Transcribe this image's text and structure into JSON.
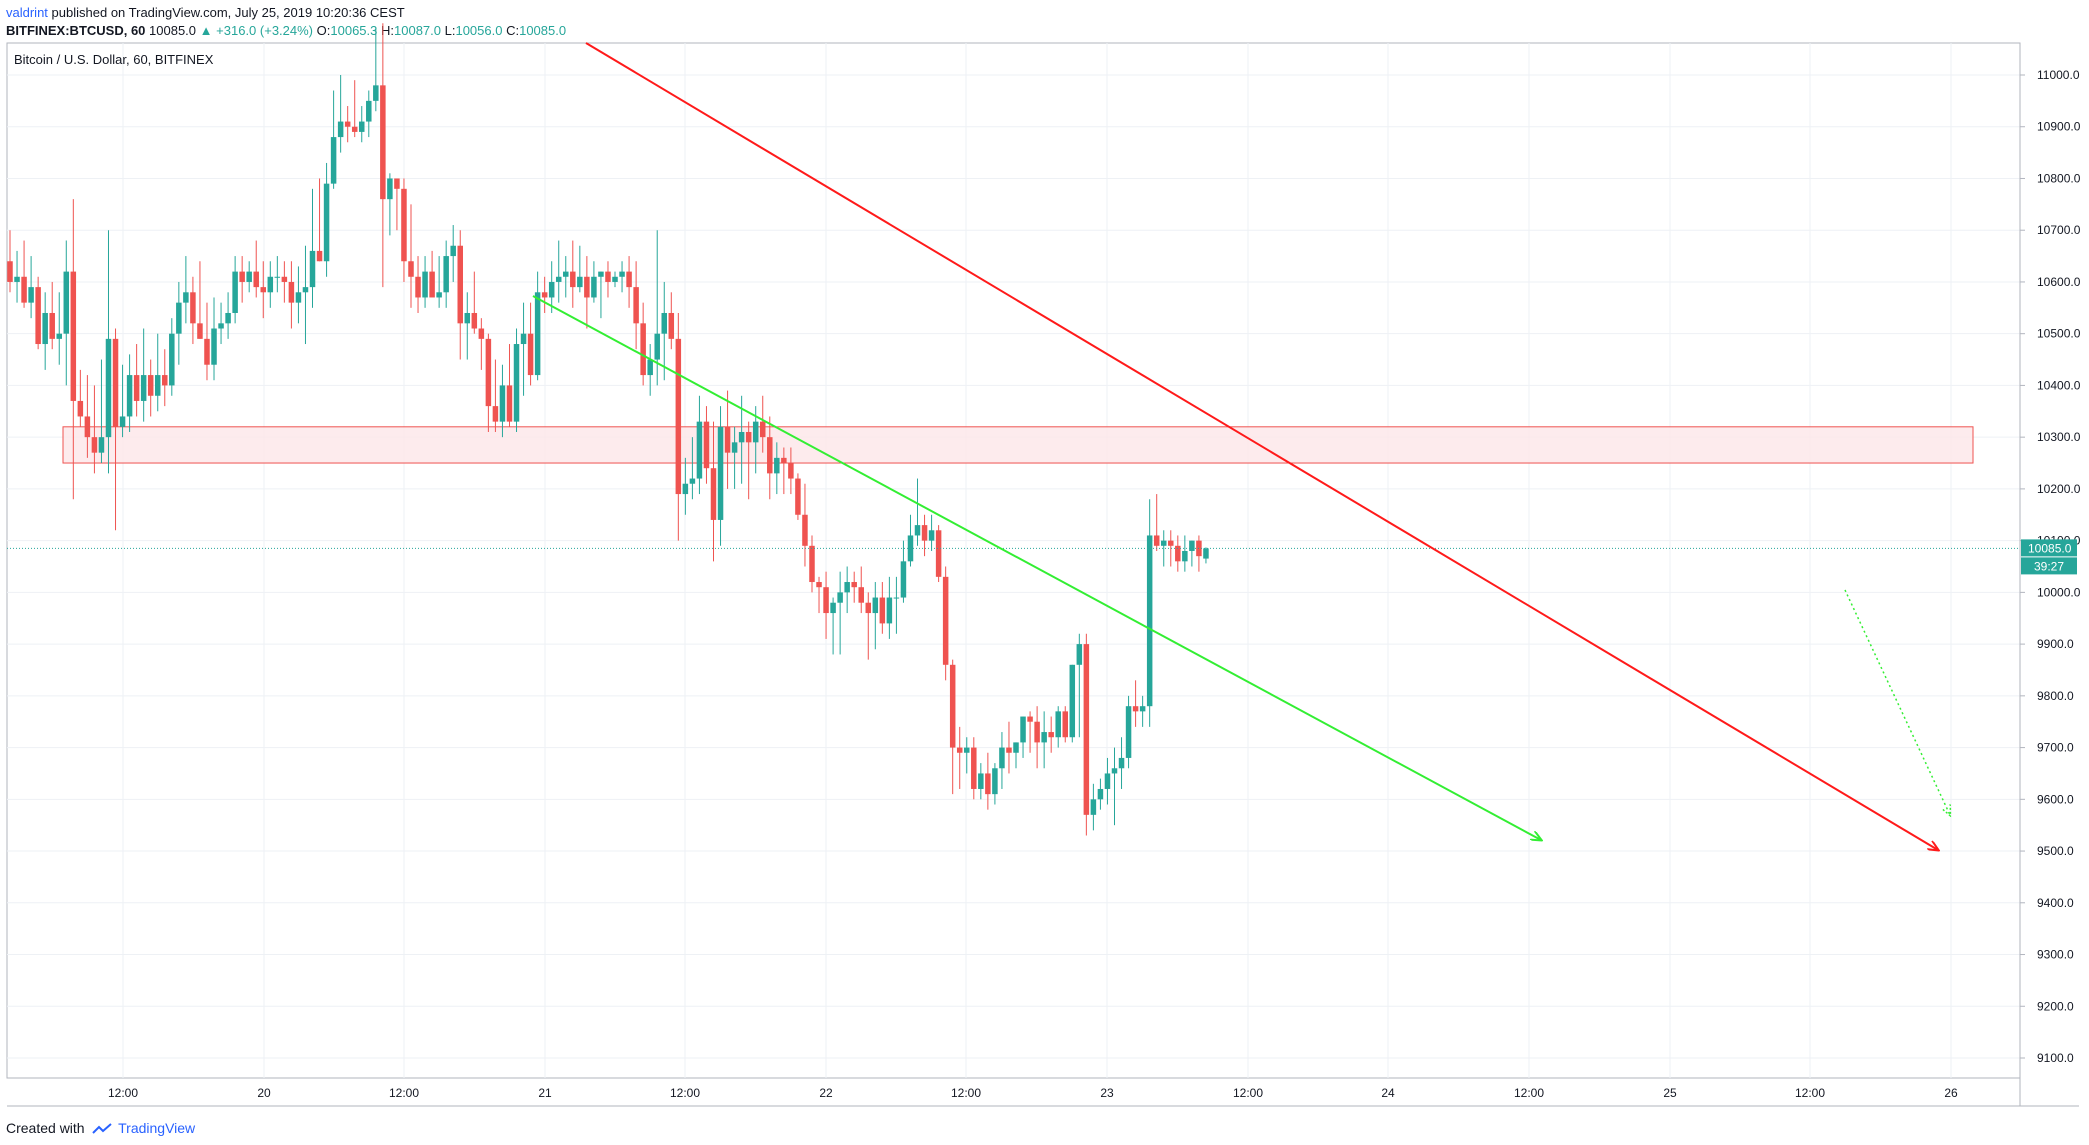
{
  "header": {
    "user": "valdrint",
    "published": "published on TradingView.com, July 25, 2019 10:20:36 CEST",
    "symbol": "BITFINEX:BTCUSD, 60",
    "last": "10085.0",
    "change": "+316.0 (+3.24%)",
    "open_label": "O:",
    "open": "10065.3",
    "high_label": "H:",
    "high": "10087.0",
    "low_label": "L:",
    "low": "10056.0",
    "close_label": "C:",
    "close": "10085.0"
  },
  "footer": {
    "created": "Created with",
    "brand": "TradingView"
  },
  "colors": {
    "up": "#26a69a",
    "down": "#ef5350",
    "grid": "#eef1f5",
    "resistance_fill": "#fde6e8",
    "resistance_stroke": "#ef5350",
    "green_line": "#33ee33",
    "red_line": "#ff1a1a",
    "price_line": "#26a69a"
  },
  "chart_data": {
    "type": "candlestick",
    "title": "Bitcoin / U.S. Dollar, 60, BITFINEX",
    "x_ticks": [
      "12:00",
      "20",
      "12:00",
      "21",
      "12:00",
      "22",
      "12:00",
      "23",
      "12:00",
      "24",
      "12:00",
      "25",
      "12:00",
      "26"
    ],
    "y_ticks": [
      "11000.0",
      "10900.0",
      "10800.0",
      "10700.0",
      "10600.0",
      "10500.0",
      "10400.0",
      "10300.0",
      "10200.0",
      "10100.0",
      "10000.0",
      "9900.0",
      "9800.0",
      "9700.0",
      "9600.0",
      "9500.0",
      "9400.0",
      "9300.0",
      "9200.0",
      "9100.0"
    ],
    "ylim": [
      9070,
      11110
    ],
    "last_price": "10085.0",
    "countdown": "39:27",
    "resistance_zone": [
      10250,
      10320
    ],
    "candles": [
      [
        10640,
        10700,
        10580,
        10600
      ],
      [
        10600,
        10660,
        10560,
        10610
      ],
      [
        10610,
        10680,
        10550,
        10560
      ],
      [
        10560,
        10650,
        10530,
        10590
      ],
      [
        10590,
        10610,
        10470,
        10480
      ],
      [
        10480,
        10580,
        10430,
        10540
      ],
      [
        10540,
        10600,
        10470,
        10490
      ],
      [
        10490,
        10580,
        10440,
        10500
      ],
      [
        10500,
        10680,
        10400,
        10620
      ],
      [
        10620,
        10760,
        10180,
        10370
      ],
      [
        10370,
        10430,
        10320,
        10340
      ],
      [
        10340,
        10420,
        10260,
        10300
      ],
      [
        10300,
        10400,
        10230,
        10270
      ],
      [
        10270,
        10450,
        10250,
        10300
      ],
      [
        10300,
        10700,
        10230,
        10490
      ],
      [
        10490,
        10510,
        10120,
        10320
      ],
      [
        10320,
        10440,
        10300,
        10340
      ],
      [
        10340,
        10460,
        10310,
        10420
      ],
      [
        10420,
        10480,
        10340,
        10370
      ],
      [
        10370,
        10510,
        10330,
        10420
      ],
      [
        10420,
        10450,
        10340,
        10380
      ],
      [
        10380,
        10500,
        10350,
        10420
      ],
      [
        10420,
        10470,
        10360,
        10400
      ],
      [
        10400,
        10530,
        10380,
        10500
      ],
      [
        10500,
        10600,
        10440,
        10560
      ],
      [
        10560,
        10650,
        10520,
        10580
      ],
      [
        10580,
        10610,
        10480,
        10520
      ],
      [
        10520,
        10640,
        10490,
        10490
      ],
      [
        10490,
        10560,
        10410,
        10440
      ],
      [
        10440,
        10570,
        10410,
        10510
      ],
      [
        10510,
        10560,
        10480,
        10520
      ],
      [
        10520,
        10580,
        10490,
        10540
      ],
      [
        10540,
        10650,
        10520,
        10620
      ],
      [
        10620,
        10650,
        10560,
        10600
      ],
      [
        10600,
        10640,
        10580,
        10620
      ],
      [
        10620,
        10680,
        10570,
        10590
      ],
      [
        10590,
        10640,
        10530,
        10580
      ],
      [
        10580,
        10640,
        10550,
        10610
      ],
      [
        10610,
        10650,
        10580,
        10610
      ],
      [
        10610,
        10640,
        10560,
        10600
      ],
      [
        10600,
        10640,
        10510,
        10560
      ],
      [
        10560,
        10630,
        10520,
        10580
      ],
      [
        10580,
        10670,
        10480,
        10590
      ],
      [
        10590,
        10780,
        10550,
        10660
      ],
      [
        10660,
        10800,
        10640,
        10640
      ],
      [
        10640,
        10830,
        10610,
        10790
      ],
      [
        10790,
        10970,
        10780,
        10880
      ],
      [
        10880,
        11000,
        10850,
        10910
      ],
      [
        10910,
        10940,
        10870,
        10900
      ],
      [
        10900,
        10990,
        10880,
        10890
      ],
      [
        10890,
        10940,
        10870,
        10910
      ],
      [
        10910,
        10970,
        10880,
        10950
      ],
      [
        10950,
        11090,
        10930,
        10980
      ],
      [
        10980,
        11100,
        10590,
        10760
      ],
      [
        10760,
        10810,
        10690,
        10800
      ],
      [
        10800,
        10790,
        10700,
        10780
      ],
      [
        10780,
        10800,
        10600,
        10640
      ],
      [
        10640,
        10750,
        10550,
        10610
      ],
      [
        10610,
        10650,
        10540,
        10570
      ],
      [
        10570,
        10650,
        10550,
        10620
      ],
      [
        10620,
        10660,
        10580,
        10570
      ],
      [
        10570,
        10650,
        10550,
        10580
      ],
      [
        10580,
        10680,
        10550,
        10650
      ],
      [
        10650,
        10710,
        10600,
        10670
      ],
      [
        10670,
        10700,
        10450,
        10520
      ],
      [
        10520,
        10580,
        10450,
        10540
      ],
      [
        10540,
        10620,
        10500,
        10510
      ],
      [
        10510,
        10530,
        10430,
        10490
      ],
      [
        10490,
        10500,
        10310,
        10360
      ],
      [
        10360,
        10450,
        10310,
        10330
      ],
      [
        10330,
        10440,
        10300,
        10400
      ],
      [
        10400,
        10480,
        10320,
        10330
      ],
      [
        10330,
        10510,
        10310,
        10480
      ],
      [
        10480,
        10560,
        10380,
        10500
      ],
      [
        10500,
        10560,
        10400,
        10420
      ],
      [
        10420,
        10620,
        10410,
        10580
      ],
      [
        10580,
        10610,
        10540,
        10570
      ],
      [
        10570,
        10640,
        10540,
        10600
      ],
      [
        10600,
        10680,
        10560,
        10610
      ],
      [
        10610,
        10650,
        10570,
        10620
      ],
      [
        10620,
        10680,
        10550,
        10590
      ],
      [
        10590,
        10670,
        10580,
        10610
      ],
      [
        10610,
        10650,
        10510,
        10570
      ],
      [
        10570,
        10640,
        10560,
        10610
      ],
      [
        10610,
        10620,
        10530,
        10620
      ],
      [
        10620,
        10640,
        10570,
        10600
      ],
      [
        10600,
        10620,
        10590,
        10610
      ],
      [
        10610,
        10640,
        10580,
        10620
      ],
      [
        10620,
        10650,
        10550,
        10590
      ],
      [
        10590,
        10640,
        10470,
        10520
      ],
      [
        10520,
        10560,
        10400,
        10420
      ],
      [
        10420,
        10480,
        10380,
        10450
      ],
      [
        10450,
        10700,
        10400,
        10500
      ],
      [
        10500,
        10600,
        10410,
        10540
      ],
      [
        10540,
        10580,
        10470,
        10490
      ],
      [
        10490,
        10540,
        10100,
        10190
      ],
      [
        10190,
        10260,
        10150,
        10210
      ],
      [
        10210,
        10300,
        10180,
        10220
      ],
      [
        10220,
        10380,
        10190,
        10330
      ],
      [
        10330,
        10360,
        10210,
        10240
      ],
      [
        10240,
        10330,
        10060,
        10140
      ],
      [
        10140,
        10360,
        10090,
        10320
      ],
      [
        10320,
        10390,
        10200,
        10270
      ],
      [
        10270,
        10320,
        10200,
        10290
      ],
      [
        10290,
        10380,
        10210,
        10310
      ],
      [
        10310,
        10330,
        10180,
        10290
      ],
      [
        10290,
        10360,
        10230,
        10330
      ],
      [
        10330,
        10380,
        10270,
        10300
      ],
      [
        10300,
        10340,
        10180,
        10230
      ],
      [
        10230,
        10290,
        10190,
        10260
      ],
      [
        10260,
        10280,
        10190,
        10250
      ],
      [
        10250,
        10280,
        10190,
        10220
      ],
      [
        10220,
        10230,
        10140,
        10150
      ],
      [
        10150,
        10210,
        10050,
        10090
      ],
      [
        10090,
        10110,
        10000,
        10020
      ],
      [
        10020,
        10030,
        9960,
        10010
      ],
      [
        10010,
        10040,
        9910,
        9960
      ],
      [
        9960,
        9990,
        9880,
        9980
      ],
      [
        9980,
        10040,
        9880,
        10000
      ],
      [
        10000,
        10050,
        9960,
        10020
      ],
      [
        10020,
        10040,
        9980,
        10010
      ],
      [
        10010,
        10050,
        9960,
        9980
      ],
      [
        9980,
        10000,
        9870,
        9960
      ],
      [
        9960,
        10020,
        9890,
        9990
      ],
      [
        9990,
        10020,
        9920,
        9940
      ],
      [
        9940,
        10030,
        9910,
        9990
      ],
      [
        9990,
        10030,
        9920,
        9990
      ],
      [
        9990,
        10100,
        9980,
        10060
      ],
      [
        10060,
        10150,
        10050,
        10110
      ],
      [
        10110,
        10220,
        10090,
        10130
      ],
      [
        10130,
        10150,
        10070,
        10100
      ],
      [
        10100,
        10150,
        10080,
        10120
      ],
      [
        10120,
        10130,
        10020,
        10030
      ],
      [
        10030,
        10050,
        9830,
        9860
      ],
      [
        9860,
        9870,
        9610,
        9700
      ],
      [
        9700,
        9740,
        9620,
        9690
      ],
      [
        9690,
        9720,
        9650,
        9700
      ],
      [
        9700,
        9720,
        9600,
        9620
      ],
      [
        9620,
        9670,
        9600,
        9650
      ],
      [
        9650,
        9690,
        9580,
        9610
      ],
      [
        9610,
        9670,
        9590,
        9660
      ],
      [
        9660,
        9730,
        9620,
        9700
      ],
      [
        9700,
        9750,
        9650,
        9690
      ],
      [
        9690,
        9710,
        9660,
        9710
      ],
      [
        9710,
        9760,
        9680,
        9760
      ],
      [
        9760,
        9770,
        9690,
        9750
      ],
      [
        9750,
        9780,
        9660,
        9710
      ],
      [
        9710,
        9770,
        9660,
        9730
      ],
      [
        9730,
        9760,
        9690,
        9720
      ],
      [
        9720,
        9780,
        9700,
        9770
      ],
      [
        9770,
        9780,
        9710,
        9720
      ],
      [
        9720,
        9860,
        9710,
        9860
      ],
      [
        9860,
        9920,
        9720,
        9900
      ],
      [
        9900,
        9920,
        9530,
        9570
      ],
      [
        9570,
        9630,
        9540,
        9600
      ],
      [
        9600,
        9640,
        9580,
        9620
      ],
      [
        9620,
        9680,
        9590,
        9650
      ],
      [
        9650,
        9700,
        9550,
        9660
      ],
      [
        9660,
        9720,
        9620,
        9680
      ],
      [
        9680,
        9800,
        9660,
        9780
      ],
      [
        9780,
        9830,
        9740,
        9770
      ],
      [
        9770,
        9800,
        9740,
        9780
      ],
      [
        9780,
        10180,
        9740,
        10110
      ],
      [
        10110,
        10190,
        10080,
        10090
      ],
      [
        10090,
        10120,
        10050,
        10100
      ],
      [
        10100,
        10120,
        10050,
        10090
      ],
      [
        10090,
        10110,
        10040,
        10060
      ],
      [
        10060,
        10110,
        10040,
        10080
      ],
      [
        10080,
        10100,
        10050,
        10100
      ],
      [
        10100,
        10110,
        10040,
        10070
      ],
      [
        10065.3,
        10087,
        10056,
        10085
      ]
    ]
  }
}
